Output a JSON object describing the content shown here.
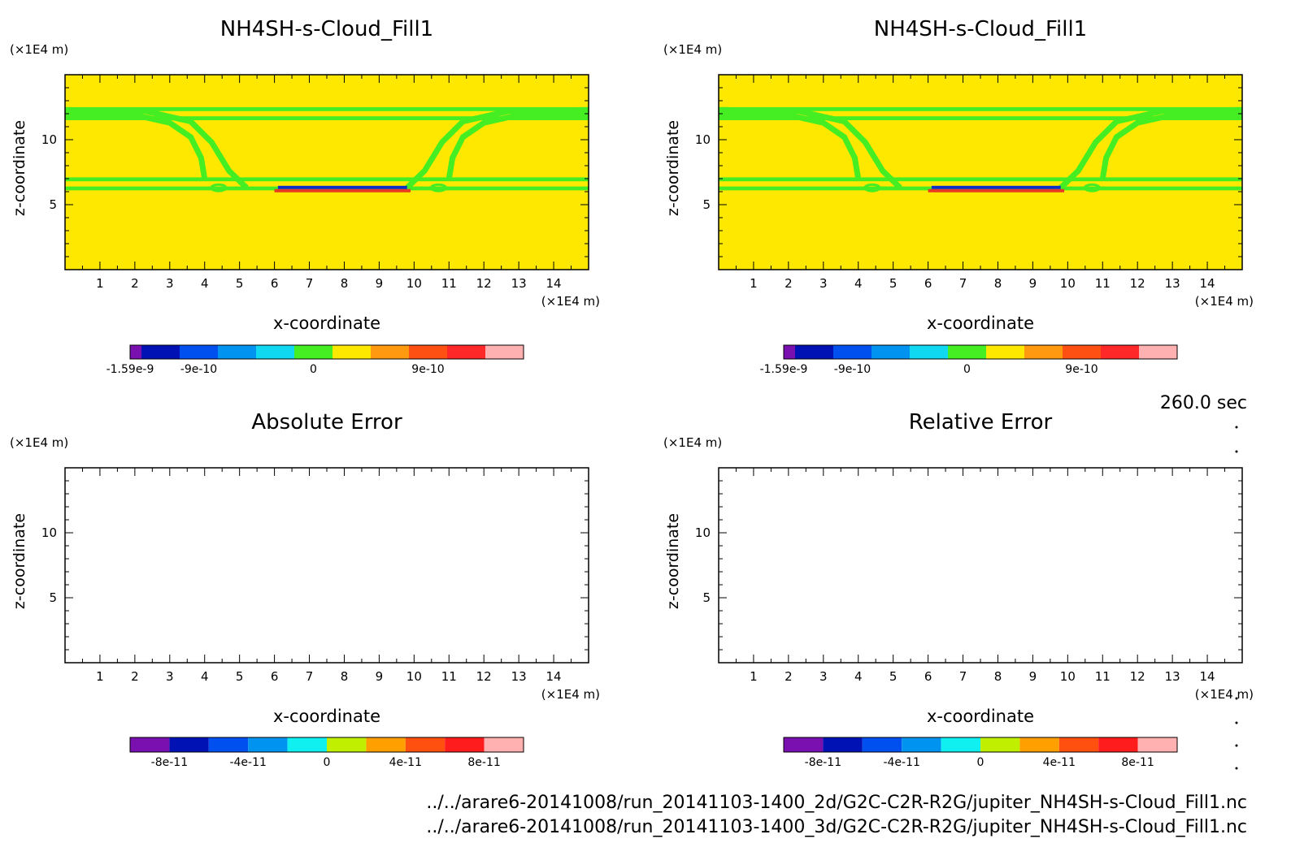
{
  "colors": {
    "cloud_field": "#FFE800",
    "contour_band": "#44EE22",
    "low_band": "#0A2EC8",
    "high_band": "#E83A22",
    "frame": "#000000"
  },
  "time_label": "260.0 sec",
  "file_paths": [
    "../../arare6-20141008/run_20141103-1400_2d/G2C-C2R-R2G/jupiter_NH4SH-s-Cloud_Fill1.nc",
    "../../arare6-20141008/run_20141103-1400_3d/G2C-C2R-R2G/jupiter_NH4SH-s-Cloud_Fill1.nc"
  ],
  "colorbar_palettes": {
    "field": [
      "#7A10B0",
      "#0012B4",
      "#0050F0",
      "#0094F0",
      "#10D8F0",
      "#44EE22",
      "#FFE800",
      "#FF9A10",
      "#FF5014",
      "#FF2828",
      "#FFB0B0"
    ],
    "error": [
      "#7A10B0",
      "#0012B4",
      "#0050F0",
      "#0094F0",
      "#10F0F0",
      "#C0F000",
      "#FFA000",
      "#FF5010",
      "#FF1C1C",
      "#FFB0B0"
    ]
  },
  "chart_data": [
    {
      "type": "heatmap",
      "title": "NH4SH-s-Cloud_Fill1",
      "xlabel": "x-coordinate",
      "ylabel": "z-coordinate",
      "x_unit": "(×1E4 m)",
      "y_unit": "(×1E4 m)",
      "xlim": [
        0,
        15
      ],
      "ylim": [
        0,
        15
      ],
      "x_ticks": [
        "1",
        "2",
        "3",
        "4",
        "5",
        "6",
        "7",
        "8",
        "9",
        "10",
        "11",
        "12",
        "13",
        "14"
      ],
      "y_ticks": [
        "5",
        "10"
      ],
      "field_fill": "dominant value 0 (yellow) with green contour bands near z=12.3, z=11.6, z=7.0 and z=6.3 and curved bands between them; a narrow negative/positive anomaly near z≈6.2, x≈6–10",
      "colorbar": {
        "labels": [
          "-1.59e-9",
          "-9e-10",
          "0",
          "9e-10"
        ]
      }
    },
    {
      "type": "heatmap",
      "title": "NH4SH-s-Cloud_Fill1",
      "xlabel": "x-coordinate",
      "ylabel": "z-coordinate",
      "x_unit": "(×1E4 m)",
      "y_unit": "(×1E4 m)",
      "xlim": [
        0,
        15
      ],
      "ylim": [
        0,
        15
      ],
      "x_ticks": [
        "1",
        "2",
        "3",
        "4",
        "5",
        "6",
        "7",
        "8",
        "9",
        "10",
        "11",
        "12",
        "13",
        "14"
      ],
      "y_ticks": [
        "5",
        "10"
      ],
      "colorbar": {
        "labels": [
          "-1.59e-9",
          "-9e-10",
          "0",
          "9e-10"
        ]
      }
    },
    {
      "type": "heatmap",
      "title": "Absolute Error",
      "xlabel": "x-coordinate",
      "ylabel": "z-coordinate",
      "x_unit": "(×1E4 m)",
      "y_unit": "(×1E4 m)",
      "xlim": [
        0,
        15
      ],
      "ylim": [
        0,
        15
      ],
      "x_ticks": [
        "1",
        "2",
        "3",
        "4",
        "5",
        "6",
        "7",
        "8",
        "9",
        "10",
        "11",
        "12",
        "13",
        "14"
      ],
      "y_ticks": [
        "5",
        "10"
      ],
      "colorbar": {
        "labels": [
          "-8e-11",
          "-4e-11",
          "0",
          "4e-11",
          "8e-11"
        ]
      }
    },
    {
      "type": "heatmap",
      "title": "Relative Error",
      "xlabel": "x-coordinate",
      "ylabel": "z-coordinate",
      "x_unit": "(×1E4 m)",
      "y_unit": "(×1E4 m)",
      "xlim": [
        0,
        15
      ],
      "ylim": [
        0,
        15
      ],
      "x_ticks": [
        "1",
        "2",
        "3",
        "4",
        "5",
        "6",
        "7",
        "8",
        "9",
        "10",
        "11",
        "12",
        "13",
        "14"
      ],
      "y_ticks": [
        "5",
        "10"
      ],
      "colorbar": {
        "labels": [
          "-8e-11",
          "-4e-11",
          "0",
          "4e-11",
          "8e-11"
        ]
      }
    }
  ]
}
